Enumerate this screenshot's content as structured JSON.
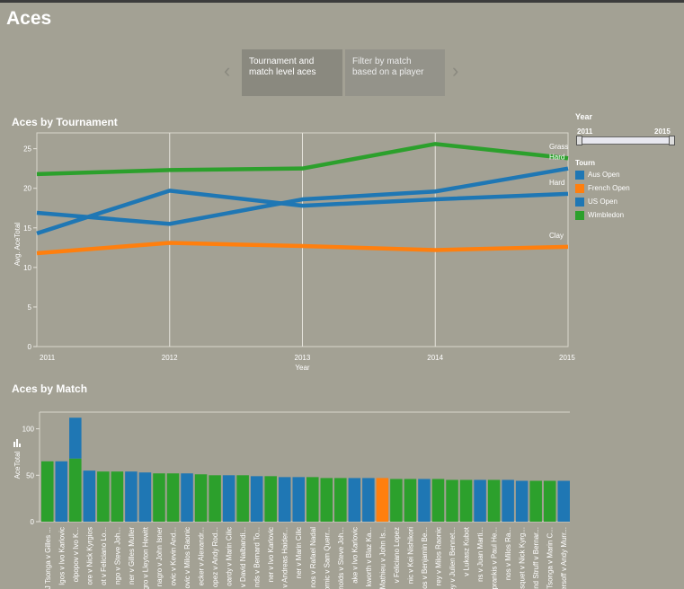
{
  "page": {
    "title": "Aces"
  },
  "story": {
    "active_label": "Tournament and match level aces",
    "inactive_label": "Filter by match based on a player",
    "prev_arrow": "‹",
    "next_arrow": "›"
  },
  "filters": {
    "year_title": "Year",
    "year_min": "2011",
    "year_max": "2015",
    "legend_title": "Tourn",
    "legend_items": [
      {
        "label": "Aus Open",
        "color": "#1f77b4"
      },
      {
        "label": "French Open",
        "color": "#ff7f0e"
      },
      {
        "label": "US Open",
        "color": "#1f77b4"
      },
      {
        "label": "Wimbledon",
        "color": "#2ca02c"
      }
    ]
  },
  "chart_data": [
    {
      "type": "line",
      "title": "Aces by Tournament",
      "xlabel": "Year",
      "ylabel": "Avg. AceTotal",
      "x": [
        2011,
        2012,
        2013,
        2014,
        2015
      ],
      "ylim": [
        0,
        27
      ],
      "yticks": [
        0,
        5,
        10,
        15,
        20,
        25
      ],
      "grid": true,
      "series": [
        {
          "name": "Grass",
          "color": "#2ca02c",
          "values": [
            21.8,
            22.3,
            22.5,
            25.6,
            23.8
          ]
        },
        {
          "name": "Hard",
          "color": "#1f77b4",
          "values": [
            16.9,
            15.5,
            18.6,
            19.6,
            22.5
          ]
        },
        {
          "name": "Hard",
          "color": "#1f77b4",
          "values": [
            14.3,
            19.7,
            17.8,
            18.6,
            19.3
          ]
        },
        {
          "name": "Clay",
          "color": "#ff7f0e",
          "values": [
            11.8,
            13.1,
            12.7,
            12.2,
            12.6
          ]
        }
      ]
    },
    {
      "type": "bar",
      "title": "Aces by Match",
      "xlabel": "",
      "ylabel": "AceTotal",
      "ylim": [
        0,
        118
      ],
      "yticks": [
        0,
        50,
        100
      ],
      "categories": [
        "J Tsonga v Gilles ...",
        "Igos v Ivo Karlovic",
        "olpopov v Ivo K...",
        "ore v Nick Kyrgios",
        "ot v Feliciano Lo...",
        "ngo v Steve Joh...",
        "ner v Gilles Muller",
        "nagro v Lleyton Hewitt",
        "nagro v John Isner",
        "ovic v Kevin And...",
        "ovic v Milos Raonic",
        "ecker v Alexandr...",
        "opez v Andy Rod...",
        "oardy v Marin Cilic",
        "v David Nalbandi...",
        "nds v Bernard To...",
        "ner v Ivo Karlovic",
        "v Andreas Haider...",
        "ner v Marin Cilic",
        "nos v Rafael Nadal",
        "ornic v Sam Querr...",
        "nolds v Steve Joh...",
        "ake v Ivo Karlovic",
        "kworth v Blaz Ka...",
        "Mathieu v John Is...",
        "v Feliciano Lopez",
        "nic v Kei Nishikori",
        "nos v Benjamin Be...",
        "rey v Milos Raonic",
        "ey v Julien Bennet...",
        "v Lukasz Kubot",
        "ns v Juan Marti...",
        "prankis v Paul He...",
        "nos v Milos Ra...",
        "squet v Nick Kyrg...",
        "nd Struff v Bernar...",
        "Tsonga v Marin C...",
        "ersoff v Andy Murr..."
      ],
      "values": [
        65,
        65,
        112,
        55,
        54,
        54,
        54,
        53,
        52,
        52,
        52,
        51,
        50,
        50,
        50,
        49,
        49,
        48,
        48,
        48,
        47,
        47,
        47,
        47,
        47,
        46,
        46,
        46,
        46,
        45,
        45,
        45,
        45,
        45,
        44,
        44,
        44,
        44
      ],
      "stacked_top": [
        0,
        0,
        44,
        0,
        0,
        0,
        0,
        0,
        0,
        0,
        0,
        0,
        0,
        0,
        0,
        0,
        0,
        0,
        0,
        0,
        0,
        0,
        0,
        0,
        0,
        0,
        0,
        0,
        0,
        0,
        0,
        0,
        0,
        0,
        0,
        0,
        0,
        0
      ],
      "colors": [
        "#2ca02c",
        "#1f77b4",
        "#2ca02c",
        "#1f77b4",
        "#2ca02c",
        "#2ca02c",
        "#1f77b4",
        "#1f77b4",
        "#2ca02c",
        "#2ca02c",
        "#1f77b4",
        "#2ca02c",
        "#2ca02c",
        "#1f77b4",
        "#2ca02c",
        "#1f77b4",
        "#2ca02c",
        "#1f77b4",
        "#1f77b4",
        "#2ca02c",
        "#2ca02c",
        "#2ca02c",
        "#1f77b4",
        "#1f77b4",
        "#ff7f0e",
        "#2ca02c",
        "#2ca02c",
        "#1f77b4",
        "#2ca02c",
        "#2ca02c",
        "#2ca02c",
        "#1f77b4",
        "#2ca02c",
        "#1f77b4",
        "#1f77b4",
        "#2ca02c",
        "#2ca02c",
        "#1f77b4"
      ]
    }
  ]
}
